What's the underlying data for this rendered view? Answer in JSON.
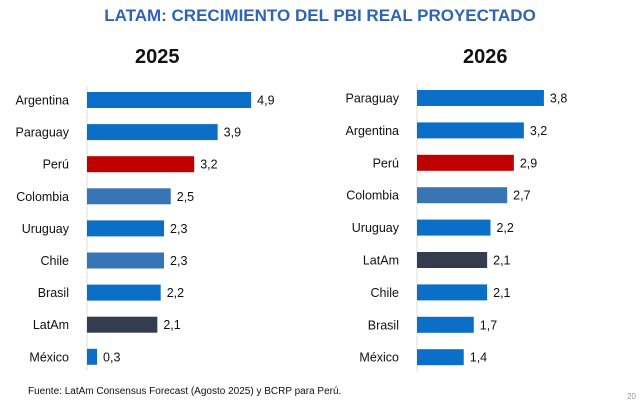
{
  "title": "LATAM: CRECIMIENTO DEL PBI REAL PROYECTADO",
  "source": "Fuente: LatAm Consensus Forecast (Agosto 2025) y BCRP para Perú.",
  "page_number": "20",
  "colors": {
    "default": "#0b6fc7",
    "peru": "#c00000",
    "steel": "#3775b5",
    "latam": "#333d4d"
  },
  "chart_data": [
    {
      "type": "bar",
      "orientation": "horizontal",
      "title": "2025",
      "categories": [
        "Argentina",
        "Paraguay",
        "Perú",
        "Colombia",
        "Uruguay",
        "Chile",
        "Brasil",
        "LatAm",
        "México"
      ],
      "values": [
        4.9,
        3.9,
        3.2,
        2.5,
        2.3,
        2.3,
        2.2,
        2.1,
        0.3
      ],
      "labels": [
        "4,9",
        "3,9",
        "3,2",
        "2,5",
        "2,3",
        "2,3",
        "2,2",
        "2,1",
        "0,3"
      ],
      "bar_colors": [
        "default",
        "default",
        "peru",
        "steel",
        "default",
        "steel",
        "default",
        "latam",
        "default"
      ]
    },
    {
      "type": "bar",
      "orientation": "horizontal",
      "title": "2026",
      "categories": [
        "Paraguay",
        "Argentina",
        "Perú",
        "Colombia",
        "Uruguay",
        "LatAm",
        "Chile",
        "Brasil",
        "México"
      ],
      "values": [
        3.8,
        3.2,
        2.9,
        2.7,
        2.2,
        2.1,
        2.1,
        1.7,
        1.4
      ],
      "labels": [
        "3,8",
        "3,2",
        "2,9",
        "2,7",
        "2,2",
        "2,1",
        "2,1",
        "1,7",
        "1,4"
      ],
      "bar_colors": [
        "default",
        "default",
        "peru",
        "steel",
        "default",
        "latam",
        "default",
        "default",
        "default"
      ]
    }
  ]
}
